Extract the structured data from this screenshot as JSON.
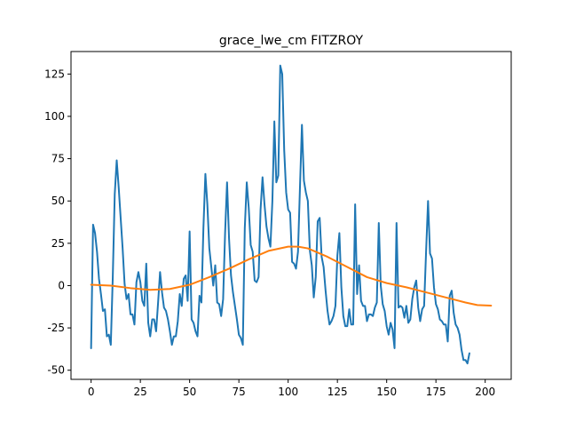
{
  "chart_data": {
    "type": "line",
    "title": "grace_lwe_cm FITZROY",
    "xlabel": "",
    "ylabel": "",
    "xlim": [
      -10.2,
      213.2
    ],
    "ylim": [
      -55.4,
      138.3
    ],
    "x_ticks": [
      0,
      25,
      50,
      75,
      100,
      125,
      150,
      175,
      200
    ],
    "y_ticks": [
      -50,
      -25,
      0,
      25,
      50,
      75,
      100,
      125
    ],
    "grid": false,
    "colors": {
      "series_0": "#1f77b4",
      "series_1": "#ff7f0e"
    },
    "series": [
      {
        "points": [
          [
            0,
            -37
          ],
          [
            1,
            36
          ],
          [
            2,
            31
          ],
          [
            3,
            20
          ],
          [
            4,
            4
          ],
          [
            5,
            -5
          ],
          [
            6,
            -15
          ],
          [
            7,
            -14
          ],
          [
            8,
            -30
          ],
          [
            9,
            -29
          ],
          [
            10,
            -35
          ],
          [
            11,
            5
          ],
          [
            12,
            54
          ],
          [
            13,
            74
          ],
          [
            14,
            58
          ],
          [
            15,
            40
          ],
          [
            16,
            22
          ],
          [
            17,
            1
          ],
          [
            18,
            -8
          ],
          [
            19,
            -5
          ],
          [
            20,
            -17
          ],
          [
            21,
            -17
          ],
          [
            22,
            -23
          ],
          [
            23,
            2
          ],
          [
            24,
            8
          ],
          [
            25,
            2
          ],
          [
            26,
            -9
          ],
          [
            27,
            -12
          ],
          [
            28,
            13
          ],
          [
            29,
            -22
          ],
          [
            30,
            -30
          ],
          [
            31,
            -20
          ],
          [
            32,
            -20
          ],
          [
            33,
            -27
          ],
          [
            34,
            -10
          ],
          [
            35,
            8
          ],
          [
            36,
            -4
          ],
          [
            37,
            -13
          ],
          [
            38,
            -15
          ],
          [
            39,
            -20
          ],
          [
            40,
            -27
          ],
          [
            41,
            -35
          ],
          [
            42,
            -30
          ],
          [
            43,
            -30
          ],
          [
            44,
            -21
          ],
          [
            45,
            -5
          ],
          [
            46,
            -12
          ],
          [
            47,
            4
          ],
          [
            48,
            6
          ],
          [
            49,
            -9
          ],
          [
            50,
            32
          ],
          [
            51,
            -20
          ],
          [
            52,
            -22
          ],
          [
            53,
            -27
          ],
          [
            54,
            -30
          ],
          [
            55,
            -6
          ],
          [
            56,
            -10
          ],
          [
            57,
            34
          ],
          [
            58,
            66
          ],
          [
            59,
            48
          ],
          [
            60,
            22
          ],
          [
            61,
            11
          ],
          [
            62,
            0
          ],
          [
            63,
            12
          ],
          [
            64,
            -10
          ],
          [
            65,
            -11
          ],
          [
            66,
            -18
          ],
          [
            67,
            -8
          ],
          [
            68,
            31
          ],
          [
            69,
            61
          ],
          [
            70,
            28
          ],
          [
            71,
            6
          ],
          [
            72,
            -4
          ],
          [
            73,
            -12
          ],
          [
            74,
            -20
          ],
          [
            75,
            -29
          ],
          [
            76,
            -31
          ],
          [
            77,
            -35
          ],
          [
            78,
            34
          ],
          [
            79,
            61
          ],
          [
            80,
            46
          ],
          [
            81,
            24
          ],
          [
            82,
            20
          ],
          [
            83,
            3
          ],
          [
            84,
            2
          ],
          [
            85,
            5
          ],
          [
            86,
            45
          ],
          [
            87,
            64
          ],
          [
            88,
            48
          ],
          [
            89,
            35
          ],
          [
            90,
            28
          ],
          [
            91,
            23
          ],
          [
            92,
            50
          ],
          [
            93,
            97
          ],
          [
            94,
            61
          ],
          [
            95,
            65
          ],
          [
            96,
            130
          ],
          [
            97,
            125
          ],
          [
            98,
            80
          ],
          [
            99,
            55
          ],
          [
            100,
            45
          ],
          [
            101,
            43
          ],
          [
            102,
            14
          ],
          [
            103,
            13
          ],
          [
            104,
            10
          ],
          [
            105,
            20
          ],
          [
            106,
            58
          ],
          [
            107,
            95
          ],
          [
            108,
            62
          ],
          [
            109,
            55
          ],
          [
            110,
            50
          ],
          [
            111,
            21
          ],
          [
            112,
            12
          ],
          [
            113,
            -7
          ],
          [
            114,
            5
          ],
          [
            115,
            38
          ],
          [
            116,
            40
          ],
          [
            117,
            17
          ],
          [
            118,
            11
          ],
          [
            119,
            -3
          ],
          [
            120,
            -15
          ],
          [
            121,
            -23
          ],
          [
            122,
            -21
          ],
          [
            123,
            -18
          ],
          [
            124,
            -12
          ],
          [
            125,
            18
          ],
          [
            126,
            31
          ],
          [
            127,
            -1
          ],
          [
            128,
            -18
          ],
          [
            129,
            -24
          ],
          [
            130,
            -24
          ],
          [
            131,
            -14
          ],
          [
            132,
            -23
          ],
          [
            133,
            -23
          ],
          [
            134,
            48
          ],
          [
            135,
            -5
          ],
          [
            136,
            12
          ],
          [
            137,
            -9
          ],
          [
            138,
            -12
          ],
          [
            139,
            -12
          ],
          [
            140,
            -21
          ],
          [
            141,
            -17
          ],
          [
            142,
            -17
          ],
          [
            143,
            -18
          ],
          [
            144,
            -13
          ],
          [
            145,
            -10
          ],
          [
            146,
            37
          ],
          [
            147,
            0
          ],
          [
            148,
            -11
          ],
          [
            149,
            -15
          ],
          [
            150,
            -24
          ],
          [
            151,
            -29
          ],
          [
            152,
            -22
          ],
          [
            153,
            -26
          ],
          [
            154,
            -37
          ],
          [
            155,
            37
          ],
          [
            156,
            -13
          ],
          [
            157,
            -12
          ],
          [
            158,
            -13
          ],
          [
            159,
            -19
          ],
          [
            160,
            -12
          ],
          [
            161,
            -22
          ],
          [
            162,
            -20
          ],
          [
            163,
            -8
          ],
          [
            164,
            -1
          ],
          [
            165,
            3
          ],
          [
            166,
            -13
          ],
          [
            167,
            -21
          ],
          [
            168,
            -14
          ],
          [
            169,
            -12
          ],
          [
            170,
            20
          ],
          [
            171,
            50
          ],
          [
            172,
            19
          ],
          [
            173,
            16
          ],
          [
            174,
            -1
          ],
          [
            175,
            -11
          ],
          [
            176,
            -14
          ],
          [
            177,
            -20
          ],
          [
            178,
            -21
          ],
          [
            179,
            -23
          ],
          [
            180,
            -23
          ],
          [
            181,
            -33
          ],
          [
            182,
            -6
          ],
          [
            183,
            -3
          ],
          [
            184,
            -16
          ],
          [
            185,
            -23
          ],
          [
            186,
            -25
          ],
          [
            187,
            -29
          ],
          [
            188,
            -38
          ],
          [
            189,
            -44
          ],
          [
            190,
            -44
          ],
          [
            191,
            -46
          ],
          [
            192,
            -40
          ]
        ],
        "values": [
          -37,
          36,
          31,
          20,
          4,
          -5,
          -15,
          -14,
          -30,
          -29,
          -35,
          5,
          54,
          74,
          58,
          40,
          22,
          1,
          -8,
          -5,
          -17,
          -17,
          -23,
          2,
          8,
          2,
          -9,
          -12,
          13,
          -22,
          -30,
          -20,
          -20,
          -27,
          -10,
          8,
          -4,
          -13,
          -15,
          -20,
          -27,
          -35,
          -30,
          -30,
          -21,
          -5,
          -12,
          4,
          6,
          -9,
          32,
          -20,
          -22,
          -27,
          -30,
          -6,
          -10,
          34,
          66,
          48,
          22,
          11,
          0,
          12,
          -10,
          -11,
          -18,
          -8,
          31,
          61,
          28,
          6,
          -4,
          -12,
          -20,
          -29,
          -31,
          -35,
          34,
          61,
          46,
          24,
          20,
          3,
          2,
          5,
          45,
          64,
          48,
          35,
          28,
          23,
          50,
          97,
          61,
          65,
          130,
          125,
          80,
          55,
          45,
          43,
          14,
          13,
          10,
          20,
          58,
          95,
          62,
          55,
          50,
          21,
          12,
          -7,
          5,
          38,
          40,
          17,
          11,
          -3,
          -15,
          -23,
          -21,
          -18,
          -12,
          18,
          31,
          -1,
          -18,
          -24,
          -24,
          -14,
          -23,
          -23,
          48,
          -5,
          12,
          -9,
          -12,
          -12,
          -21,
          -17,
          -17,
          -18,
          -13,
          -10,
          37,
          0,
          -11,
          -15,
          -24,
          -29,
          -22,
          -26,
          -37,
          37,
          -13,
          -12,
          -13,
          -19,
          -12,
          -22,
          -20,
          -8,
          -1,
          3,
          -13,
          -21,
          -14,
          -12,
          20,
          50,
          19,
          16,
          -1,
          -11,
          -14,
          -20,
          -21,
          -23,
          -23,
          -33,
          -6,
          -3,
          -16,
          -23,
          -25,
          -29,
          -38,
          -44,
          -44,
          -46,
          -40
        ]
      },
      {
        "points": [
          [
            0,
            0.5
          ],
          [
            10,
            0.0
          ],
          [
            20,
            -1.5
          ],
          [
            30,
            -2.5
          ],
          [
            40,
            -2.0
          ],
          [
            50,
            0.5
          ],
          [
            60,
            5.0
          ],
          [
            70,
            10.0
          ],
          [
            80,
            15.5
          ],
          [
            90,
            20.5
          ],
          [
            100,
            23.0
          ],
          [
            105,
            23.0
          ],
          [
            110,
            22.0
          ],
          [
            120,
            17.0
          ],
          [
            130,
            11.0
          ],
          [
            140,
            5.0
          ],
          [
            150,
            1.5
          ],
          [
            160,
            -1.0
          ],
          [
            170,
            -4.0
          ],
          [
            180,
            -7.0
          ],
          [
            190,
            -10.0
          ],
          [
            196,
            -11.5
          ],
          [
            203,
            -11.8
          ]
        ]
      }
    ]
  }
}
